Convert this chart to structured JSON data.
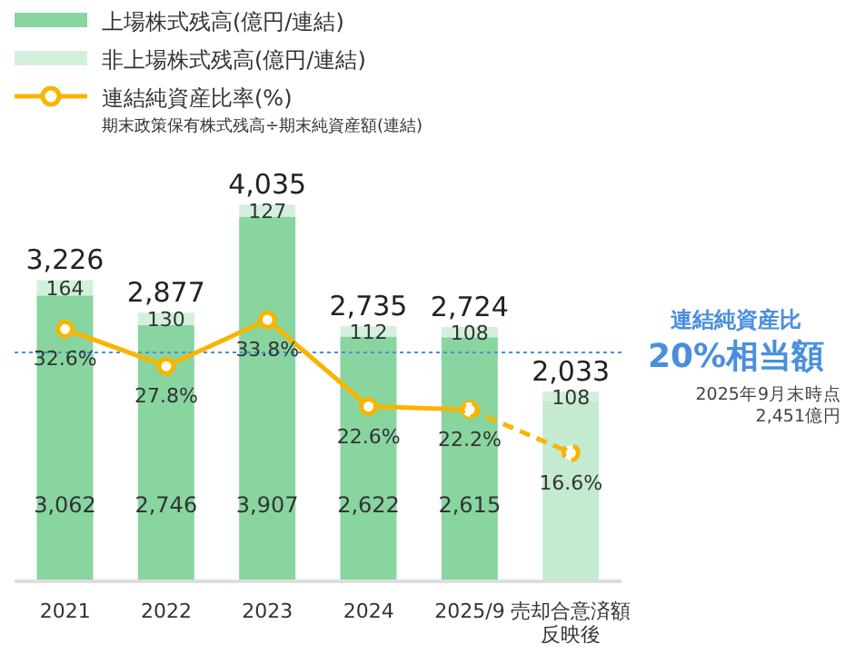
{
  "chart_data": {
    "type": "bar",
    "stacked": true,
    "legend": "top left",
    "tick_labels": "x",
    "marker": "circle",
    "categories": [
      "2021",
      "2022",
      "2023",
      "2024",
      "2025/9",
      "売却合意済額反映後"
    ],
    "series": [
      {
        "name": "上場株式残高(億円/連結)",
        "color": "#88d5a0",
        "colors": [
          "#88d5a0",
          "#88d5a0",
          "#88d5a0",
          "#88d5a0",
          "#88d5a0",
          "#c4ebd0"
        ],
        "values": [
          3062,
          2746,
          3907,
          2622,
          2615,
          1925
        ],
        "value_labels": [
          "3,062",
          "2,746",
          "3,907",
          "2,622",
          "2,615",
          null
        ]
      },
      {
        "name": "非上場株式残高(億円/連結)",
        "color": "#d3f0dc",
        "values": [
          164,
          130,
          127,
          112,
          108,
          108
        ],
        "value_labels": [
          "164",
          "130",
          "127",
          "112",
          "108",
          "108"
        ]
      },
      {
        "name": "連結純資産比率(%)",
        "type": "line",
        "axis": "y2",
        "color": "#f7b500",
        "line_style": "solid",
        "values": [
          32.6,
          27.8,
          33.8,
          22.6,
          22.2,
          null
        ],
        "value_labels": [
          "32.6%",
          "27.8%",
          "33.8%",
          "22.6%",
          "22.2%",
          null
        ]
      },
      {
        "type": "line",
        "axis": "y2",
        "color": "#f7b500",
        "line_style": "dashed",
        "values": [
          null,
          null,
          null,
          null,
          22.2,
          16.6
        ],
        "value_labels": [
          null,
          null,
          null,
          null,
          null,
          "16.6%"
        ]
      }
    ],
    "totals": [
      "3,226",
      "2,877",
      "4,035",
      "2,735",
      "2,724",
      "2,033"
    ],
    "ref_lines": [
      {
        "axis": "y",
        "value": 2451,
        "label": "連結純資産比\n20%相当額",
        "color": "#4a8fdc",
        "line_style": "dotted"
      }
    ],
    "annotations": [
      "期末政策保有株式残高÷期末純資産額(連結)",
      "2025年9月末時点\n2,451億円"
    ]
  }
}
